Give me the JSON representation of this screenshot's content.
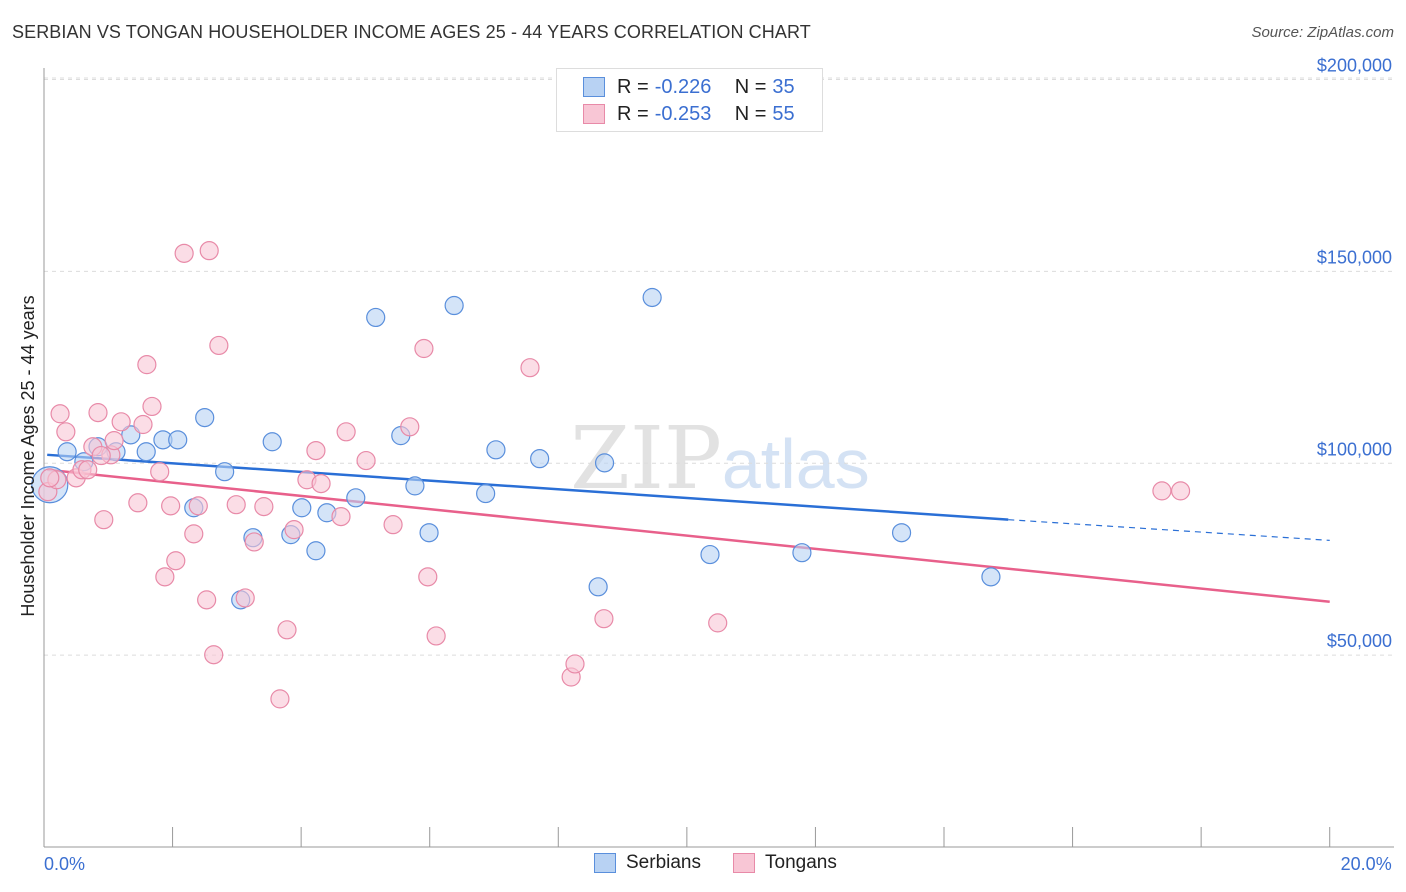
{
  "header": {
    "title": "SERBIAN VS TONGAN HOUSEHOLDER INCOME AGES 25 - 44 YEARS CORRELATION CHART",
    "source": "Source: ZipAtlas.com"
  },
  "legend": {
    "rows": [
      {
        "r_label": "R =",
        "r_value": "-0.226",
        "n_label": "N =",
        "n_value": "35"
      },
      {
        "r_label": "R =",
        "r_value": "-0.253",
        "n_label": "N =",
        "n_value": "55"
      }
    ]
  },
  "colors": {
    "serbians_fill": "#b8d2f3",
    "serbians_stroke": "#5a8fdc",
    "serbians_line": "#2a6fd6",
    "tongans_fill": "#f8c6d5",
    "tongans_stroke": "#e88aa8",
    "tongans_line": "#e8608b",
    "axis_label": "#3b6fd1"
  },
  "chart_data": {
    "type": "scatter",
    "title": "SERBIAN VS TONGAN HOUSEHOLDER INCOME AGES 25 - 44 YEARS CORRELATION CHART",
    "xlabel": "",
    "ylabel": "Householder Income Ages 25 - 44 years",
    "xlim": [
      0,
      21
    ],
    "ylim": [
      0,
      203000
    ],
    "x_tick_values": [
      0,
      2,
      4,
      6,
      8,
      10,
      12,
      14,
      16,
      18,
      20
    ],
    "x_tick_labels": [
      {
        "value": 0,
        "label": "0.0%"
      },
      {
        "value": 20,
        "label": "20.0%"
      }
    ],
    "y_ticks": [
      {
        "value": 50000,
        "label": "$50,000"
      },
      {
        "value": 100000,
        "label": "$100,000"
      },
      {
        "value": 150000,
        "label": "$150,000"
      },
      {
        "value": 200000,
        "label": "$200,000"
      }
    ],
    "grid": true,
    "watermark": "ZIPatlas",
    "legend_position": "top-center",
    "series": [
      {
        "name": "Serbians",
        "R": -0.226,
        "N": 35,
        "trend": {
          "x": [
            0.05,
            15,
            20
          ],
          "y": [
            102200,
            85300,
            79900
          ],
          "solid_until": 15
        },
        "points": [
          {
            "x": 0.09,
            "y": 94400,
            "large": true
          },
          {
            "x": 0.36,
            "y": 103000
          },
          {
            "x": 0.62,
            "y": 100400
          },
          {
            "x": 0.84,
            "y": 104300
          },
          {
            "x": 1.12,
            "y": 103000
          },
          {
            "x": 1.35,
            "y": 107400
          },
          {
            "x": 1.59,
            "y": 103000
          },
          {
            "x": 1.85,
            "y": 106100
          },
          {
            "x": 2.08,
            "y": 106100
          },
          {
            "x": 2.33,
            "y": 88400
          },
          {
            "x": 2.5,
            "y": 111900
          },
          {
            "x": 2.81,
            "y": 97800
          },
          {
            "x": 3.06,
            "y": 64400
          },
          {
            "x": 3.25,
            "y": 80600
          },
          {
            "x": 3.55,
            "y": 105600
          },
          {
            "x": 3.84,
            "y": 81400
          },
          {
            "x": 4.01,
            "y": 88400
          },
          {
            "x": 4.23,
            "y": 77200
          },
          {
            "x": 4.4,
            "y": 87100
          },
          {
            "x": 4.85,
            "y": 91000
          },
          {
            "x": 5.16,
            "y": 138000
          },
          {
            "x": 5.55,
            "y": 107200
          },
          {
            "x": 5.77,
            "y": 94100
          },
          {
            "x": 5.99,
            "y": 81900
          },
          {
            "x": 6.38,
            "y": 141100
          },
          {
            "x": 6.87,
            "y": 92100
          },
          {
            "x": 7.03,
            "y": 103500
          },
          {
            "x": 7.71,
            "y": 101200
          },
          {
            "x": 8.62,
            "y": 67800
          },
          {
            "x": 8.72,
            "y": 100100
          },
          {
            "x": 9.46,
            "y": 143200
          },
          {
            "x": 10.36,
            "y": 76200
          },
          {
            "x": 11.79,
            "y": 76700
          },
          {
            "x": 13.34,
            "y": 81900
          },
          {
            "x": 14.73,
            "y": 70400
          }
        ]
      },
      {
        "name": "Tongans",
        "R": -0.253,
        "N": 55,
        "trend": {
          "x": [
            0.05,
            20
          ],
          "y": [
            98300,
            63900
          ],
          "solid_until": 20
        },
        "points": [
          {
            "x": 0.06,
            "y": 92600
          },
          {
            "x": 0.2,
            "y": 95700
          },
          {
            "x": 0.25,
            "y": 112900
          },
          {
            "x": 0.34,
            "y": 108200
          },
          {
            "x": 0.5,
            "y": 96200
          },
          {
            "x": 0.59,
            "y": 98300
          },
          {
            "x": 0.68,
            "y": 98300
          },
          {
            "x": 0.84,
            "y": 113200
          },
          {
            "x": 0.76,
            "y": 104300
          },
          {
            "x": 0.93,
            "y": 85300
          },
          {
            "x": 1.04,
            "y": 102200
          },
          {
            "x": 1.09,
            "y": 105900
          },
          {
            "x": 1.2,
            "y": 110800
          },
          {
            "x": 1.46,
            "y": 89700
          },
          {
            "x": 1.54,
            "y": 110100
          },
          {
            "x": 1.68,
            "y": 114800
          },
          {
            "x": 1.6,
            "y": 125700
          },
          {
            "x": 1.8,
            "y": 97800
          },
          {
            "x": 1.88,
            "y": 70400
          },
          {
            "x": 1.97,
            "y": 88900
          },
          {
            "x": 2.05,
            "y": 74600
          },
          {
            "x": 2.18,
            "y": 154700
          },
          {
            "x": 2.33,
            "y": 81600
          },
          {
            "x": 2.4,
            "y": 88900
          },
          {
            "x": 2.53,
            "y": 64400
          },
          {
            "x": 2.57,
            "y": 155400
          },
          {
            "x": 2.64,
            "y": 50100
          },
          {
            "x": 2.72,
            "y": 130700
          },
          {
            "x": 2.99,
            "y": 89200
          },
          {
            "x": 3.13,
            "y": 64900
          },
          {
            "x": 3.27,
            "y": 79500
          },
          {
            "x": 3.42,
            "y": 88700
          },
          {
            "x": 3.67,
            "y": 38600
          },
          {
            "x": 3.78,
            "y": 56600
          },
          {
            "x": 3.89,
            "y": 82700
          },
          {
            "x": 4.09,
            "y": 95700
          },
          {
            "x": 4.23,
            "y": 103300
          },
          {
            "x": 4.31,
            "y": 94700
          },
          {
            "x": 4.62,
            "y": 86100
          },
          {
            "x": 4.7,
            "y": 108200
          },
          {
            "x": 5.01,
            "y": 100700
          },
          {
            "x": 5.43,
            "y": 84000
          },
          {
            "x": 5.69,
            "y": 109500
          },
          {
            "x": 5.91,
            "y": 129900
          },
          {
            "x": 5.97,
            "y": 70400
          },
          {
            "x": 6.1,
            "y": 55000
          },
          {
            "x": 7.56,
            "y": 124900
          },
          {
            "x": 8.2,
            "y": 44300
          },
          {
            "x": 8.26,
            "y": 47700
          },
          {
            "x": 8.71,
            "y": 59500
          },
          {
            "x": 10.48,
            "y": 58400
          },
          {
            "x": 17.39,
            "y": 92800
          },
          {
            "x": 17.68,
            "y": 92800
          },
          {
            "x": 0.09,
            "y": 96200
          },
          {
            "x": 0.89,
            "y": 102000
          }
        ]
      }
    ]
  }
}
